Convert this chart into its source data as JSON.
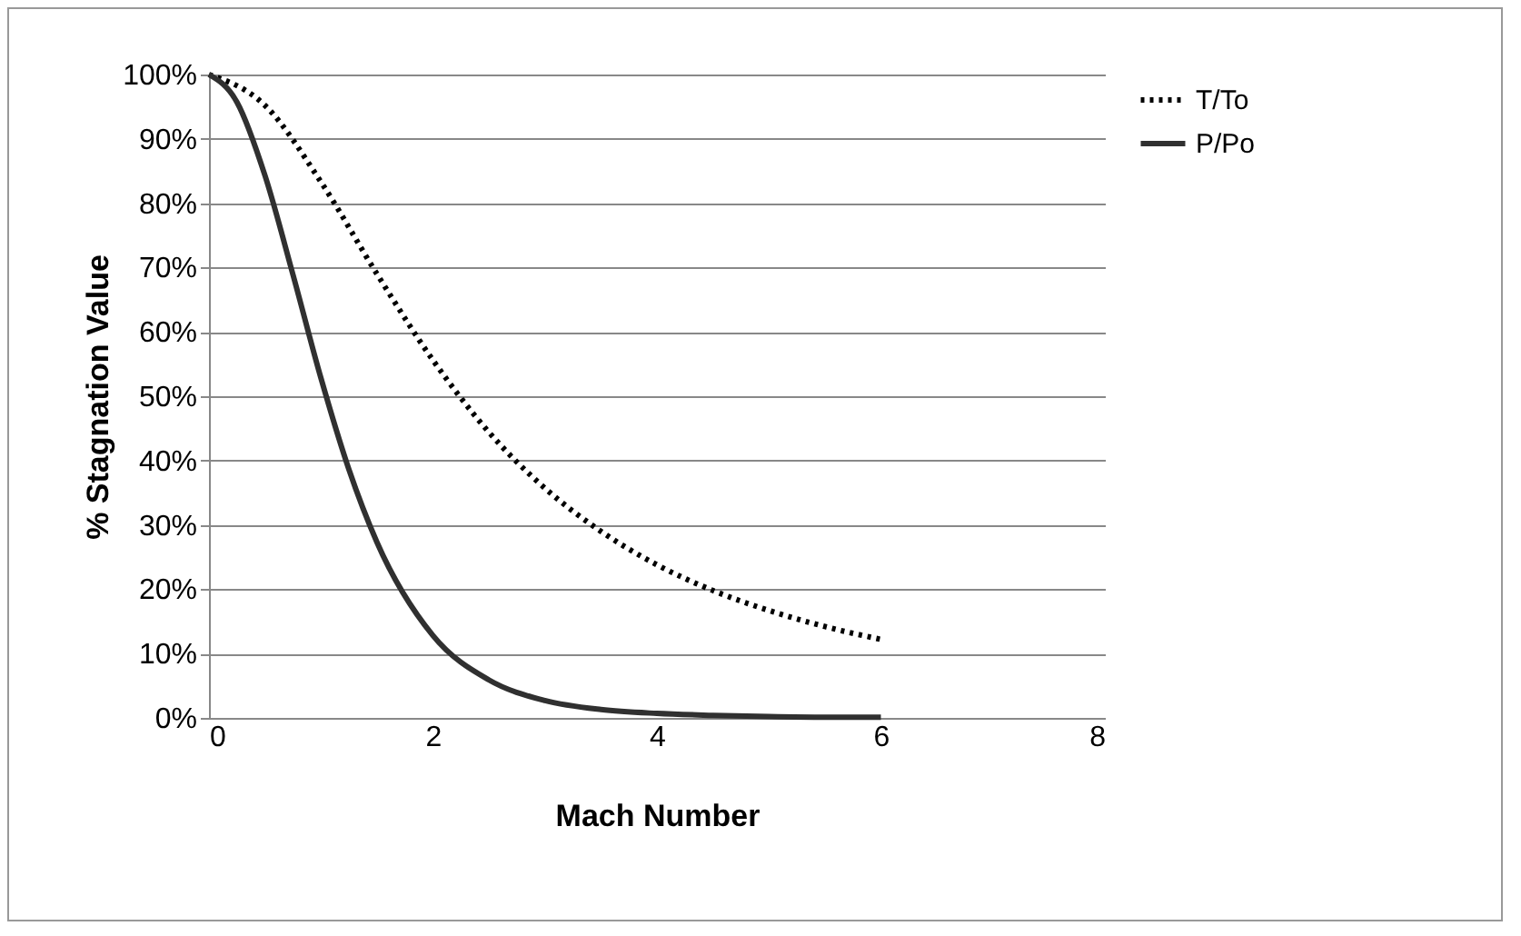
{
  "chart_data": {
    "type": "line",
    "xlabel": "Mach Number",
    "ylabel": "% Stagnation Value",
    "xlim": [
      0,
      8
    ],
    "xticks": [
      0,
      2,
      4,
      6,
      8
    ],
    "ylim": [
      0,
      100
    ],
    "yticks": [
      {
        "value": 0,
        "label": "0%"
      },
      {
        "value": 10,
        "label": "10%"
      },
      {
        "value": 20,
        "label": "20%"
      },
      {
        "value": 30,
        "label": "30%"
      },
      {
        "value": 40,
        "label": "40%"
      },
      {
        "value": 50,
        "label": "50%"
      },
      {
        "value": 60,
        "label": "60%"
      },
      {
        "value": 70,
        "label": "70%"
      },
      {
        "value": 80,
        "label": "80%"
      },
      {
        "value": 90,
        "label": "90%"
      },
      {
        "value": 100,
        "label": "100%"
      }
    ],
    "grid": "y",
    "legend": "right",
    "marker": "none",
    "series": [
      {
        "name": "T/To",
        "color": "#000000",
        "line_style": "dotted",
        "x": [
          0,
          0.5,
          1,
          1.5,
          2,
          2.5,
          3,
          3.5,
          4,
          4.5,
          5,
          5.5,
          6
        ],
        "values": [
          100,
          95.2,
          83.3,
          69,
          55.6,
          44.4,
          35.7,
          29,
          23.8,
          19.8,
          16.7,
          14.2,
          12.2
        ]
      },
      {
        "name": "P/Po",
        "color": "#303030",
        "line_style": "solid",
        "x": [
          0,
          0.25,
          0.5,
          0.75,
          1,
          1.25,
          1.5,
          2,
          2.5,
          3,
          3.5,
          4,
          4.5,
          5,
          5.5,
          6
        ],
        "values": [
          100,
          95.7,
          84.3,
          68.9,
          52.8,
          38.6,
          27.3,
          12.8,
          5.9,
          2.7,
          1.3,
          0.7,
          0.4,
          0.2,
          0.1,
          0.1
        ]
      }
    ]
  }
}
